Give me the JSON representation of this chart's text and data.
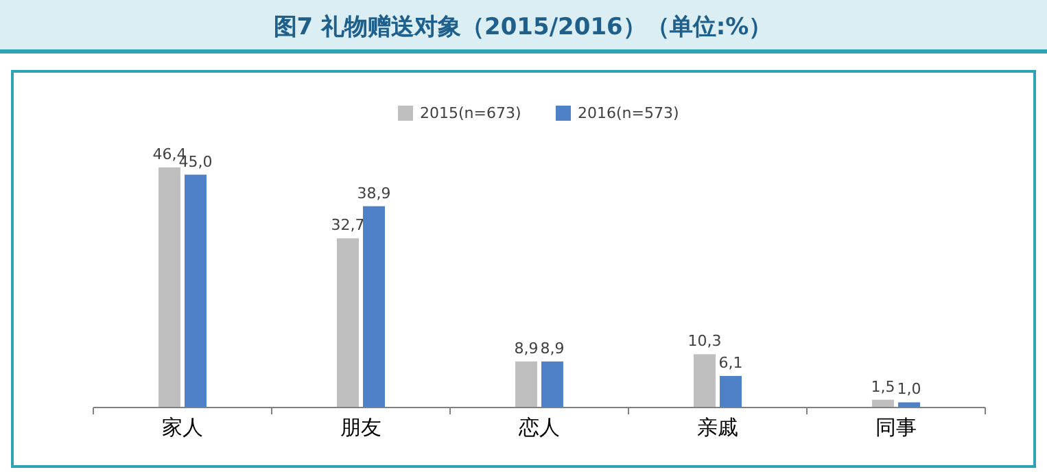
{
  "chart_data": {
    "type": "bar",
    "title": "图7 礼物赠送对象（2015/2016）（单位:%）",
    "categories": [
      "家人",
      "朋友",
      "恋人",
      "亲戚",
      "同事"
    ],
    "series": [
      {
        "name": "2015(n=673)",
        "color": "#bfbfbf",
        "values": [
          46.4,
          32.7,
          8.9,
          10.3,
          1.5
        ],
        "value_labels": [
          "46,4",
          "32,7",
          "8,9",
          "10,3",
          "1,5"
        ]
      },
      {
        "name": "2016(n=573)",
        "color": "#4f81c8",
        "values": [
          45.0,
          38.9,
          8.9,
          6.1,
          1.0
        ],
        "value_labels": [
          "45,0",
          "38,9",
          "8,9",
          "6,1",
          "1,0"
        ]
      }
    ],
    "legend": "top",
    "grid": false
  }
}
